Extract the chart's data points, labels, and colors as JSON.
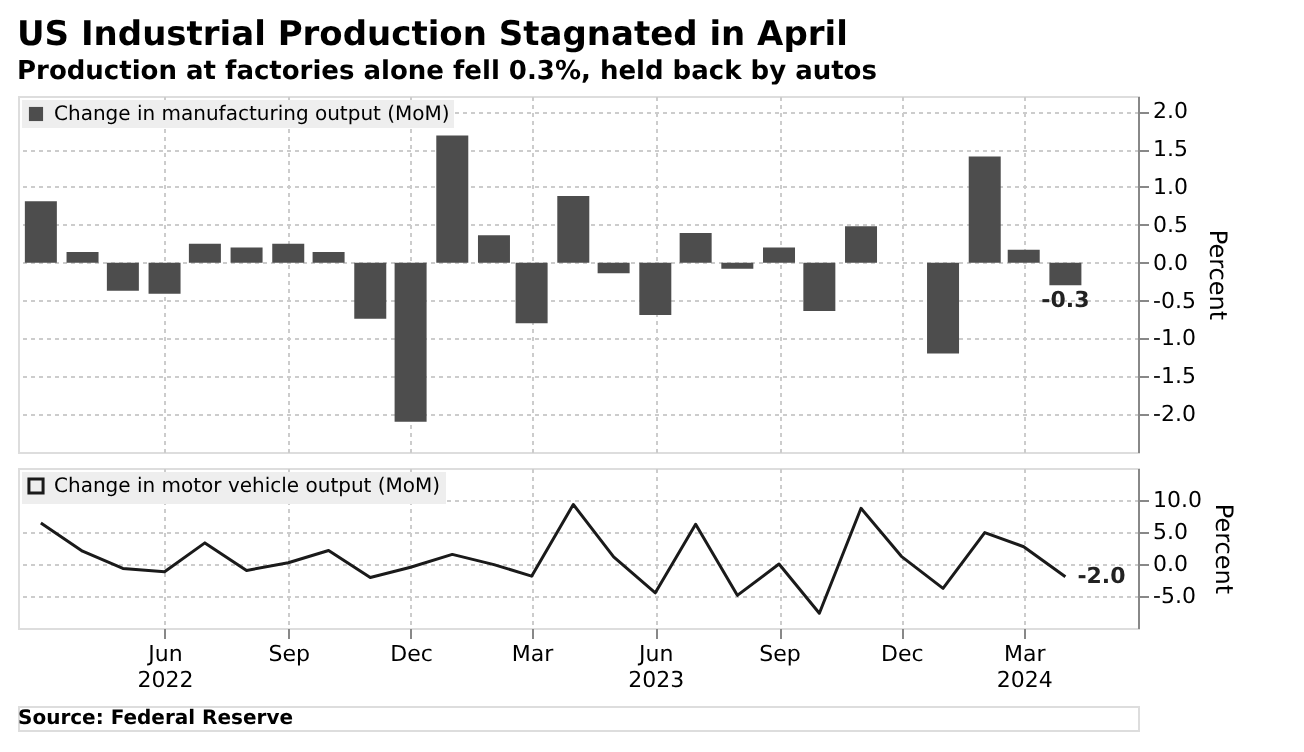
{
  "chart_data": [
    {
      "type": "bar",
      "title": "US Industrial Production Stagnated in April",
      "subtitle": "Production at factories alone fell 0.3%, held back by autos",
      "ylabel": "Percent",
      "x": [
        "2022-03",
        "2022-04",
        "2022-05",
        "2022-06",
        "2022-07",
        "2022-08",
        "2022-09",
        "2022-10",
        "2022-11",
        "2022-12",
        "2023-01",
        "2023-02",
        "2023-03",
        "2023-04",
        "2023-05",
        "2023-06",
        "2023-07",
        "2023-08",
        "2023-09",
        "2023-10",
        "2023-11",
        "2023-12",
        "2024-01",
        "2024-02",
        "2024-03",
        "2024-04"
      ],
      "series": [
        {
          "name": "Change in manufacturing output (MoM)",
          "color": "#4d4d4d",
          "values": [
            0.81,
            0.14,
            -0.37,
            -0.41,
            0.25,
            0.2,
            0.25,
            0.14,
            -0.74,
            -2.1,
            1.68,
            0.36,
            -0.8,
            0.88,
            -0.14,
            -0.69,
            0.39,
            -0.08,
            0.2,
            -0.64,
            0.48,
            0.0,
            -1.2,
            1.4,
            0.17,
            -0.3
          ],
          "value_labels": [
            null,
            null,
            null,
            null,
            null,
            null,
            null,
            null,
            null,
            null,
            null,
            null,
            null,
            null,
            null,
            null,
            null,
            null,
            null,
            null,
            null,
            null,
            null,
            null,
            null,
            "-0.3"
          ]
        }
      ],
      "xlim": [
        "2022-02-12",
        "2024-05-25"
      ],
      "xticks": [
        "2022-06",
        "2022-09",
        "2022-12",
        "2023-03",
        "2023-06",
        "2023-09",
        "2023-12",
        "2024-03"
      ],
      "ylim": [
        -2.5,
        2.2
      ],
      "yticks": [
        {
          "value": -2,
          "label": "-2.0"
        },
        {
          "value": -1.5,
          "label": "-1.5"
        },
        {
          "value": -1,
          "label": "-1.0"
        },
        {
          "value": -0.5,
          "label": "-0.5"
        },
        {
          "value": 0,
          "label": "0.0"
        },
        {
          "value": 0.5,
          "label": "0.5"
        },
        {
          "value": 1,
          "label": "1.0"
        },
        {
          "value": 1.5,
          "label": "1.5"
        },
        {
          "value": 2,
          "label": "2.0"
        }
      ],
      "grid": true,
      "legend": "top left",
      "tick_labels": "y"
    },
    {
      "type": "line",
      "ylabel": "Percent",
      "x": [
        "2022-03",
        "2022-04",
        "2022-05",
        "2022-06",
        "2022-07",
        "2022-08",
        "2022-09",
        "2022-10",
        "2022-11",
        "2022-12",
        "2023-01",
        "2023-02",
        "2023-03",
        "2023-04",
        "2023-05",
        "2023-06",
        "2023-07",
        "2023-08",
        "2023-09",
        "2023-10",
        "2023-11",
        "2023-12",
        "2024-01",
        "2024-02",
        "2024-03",
        "2024-04"
      ],
      "series": [
        {
          "name": "Change in motor vehicle output (MoM)",
          "color": "#1a1a1a",
          "values": [
            6.4,
            2.0,
            -0.7,
            -1.2,
            3.3,
            -1.0,
            0.2,
            2.1,
            -2.1,
            -0.5,
            1.5,
            -0.1,
            -1.9,
            9.3,
            1.1,
            -4.5,
            6.2,
            -4.9,
            0.0,
            -7.7,
            8.7,
            1.2,
            -3.8,
            4.9,
            2.7,
            -2.0
          ],
          "value_labels": [
            null,
            null,
            null,
            null,
            null,
            null,
            null,
            null,
            null,
            null,
            null,
            null,
            null,
            null,
            null,
            null,
            null,
            null,
            null,
            null,
            null,
            null,
            null,
            null,
            null,
            "-2.0"
          ]
        }
      ],
      "xlim": [
        "2022-02-12",
        "2024-05-25"
      ],
      "xticks": [
        {
          "value": "2022-06",
          "label": "Jun\n2022"
        },
        {
          "value": "2022-09",
          "label": "Sep"
        },
        {
          "value": "2022-12",
          "label": "Dec"
        },
        {
          "value": "2023-03",
          "label": "Mar"
        },
        {
          "value": "2023-06",
          "label": "Jun\n2023"
        },
        {
          "value": "2023-09",
          "label": "Sep"
        },
        {
          "value": "2023-12",
          "label": "Dec"
        },
        {
          "value": "2024-03",
          "label": "Mar\n2024"
        }
      ],
      "ylim": [
        -10,
        15
      ],
      "yticks": [
        {
          "value": -5,
          "label": "-5.0"
        },
        {
          "value": 0,
          "label": "0.0"
        },
        {
          "value": 5,
          "label": "5.0"
        },
        {
          "value": 10,
          "label": "10.0"
        }
      ],
      "annotations": [
        "Source: Federal Reserve"
      ],
      "grid": true,
      "legend": "top left",
      "marker": "none",
      "line_style": "solid"
    }
  ]
}
